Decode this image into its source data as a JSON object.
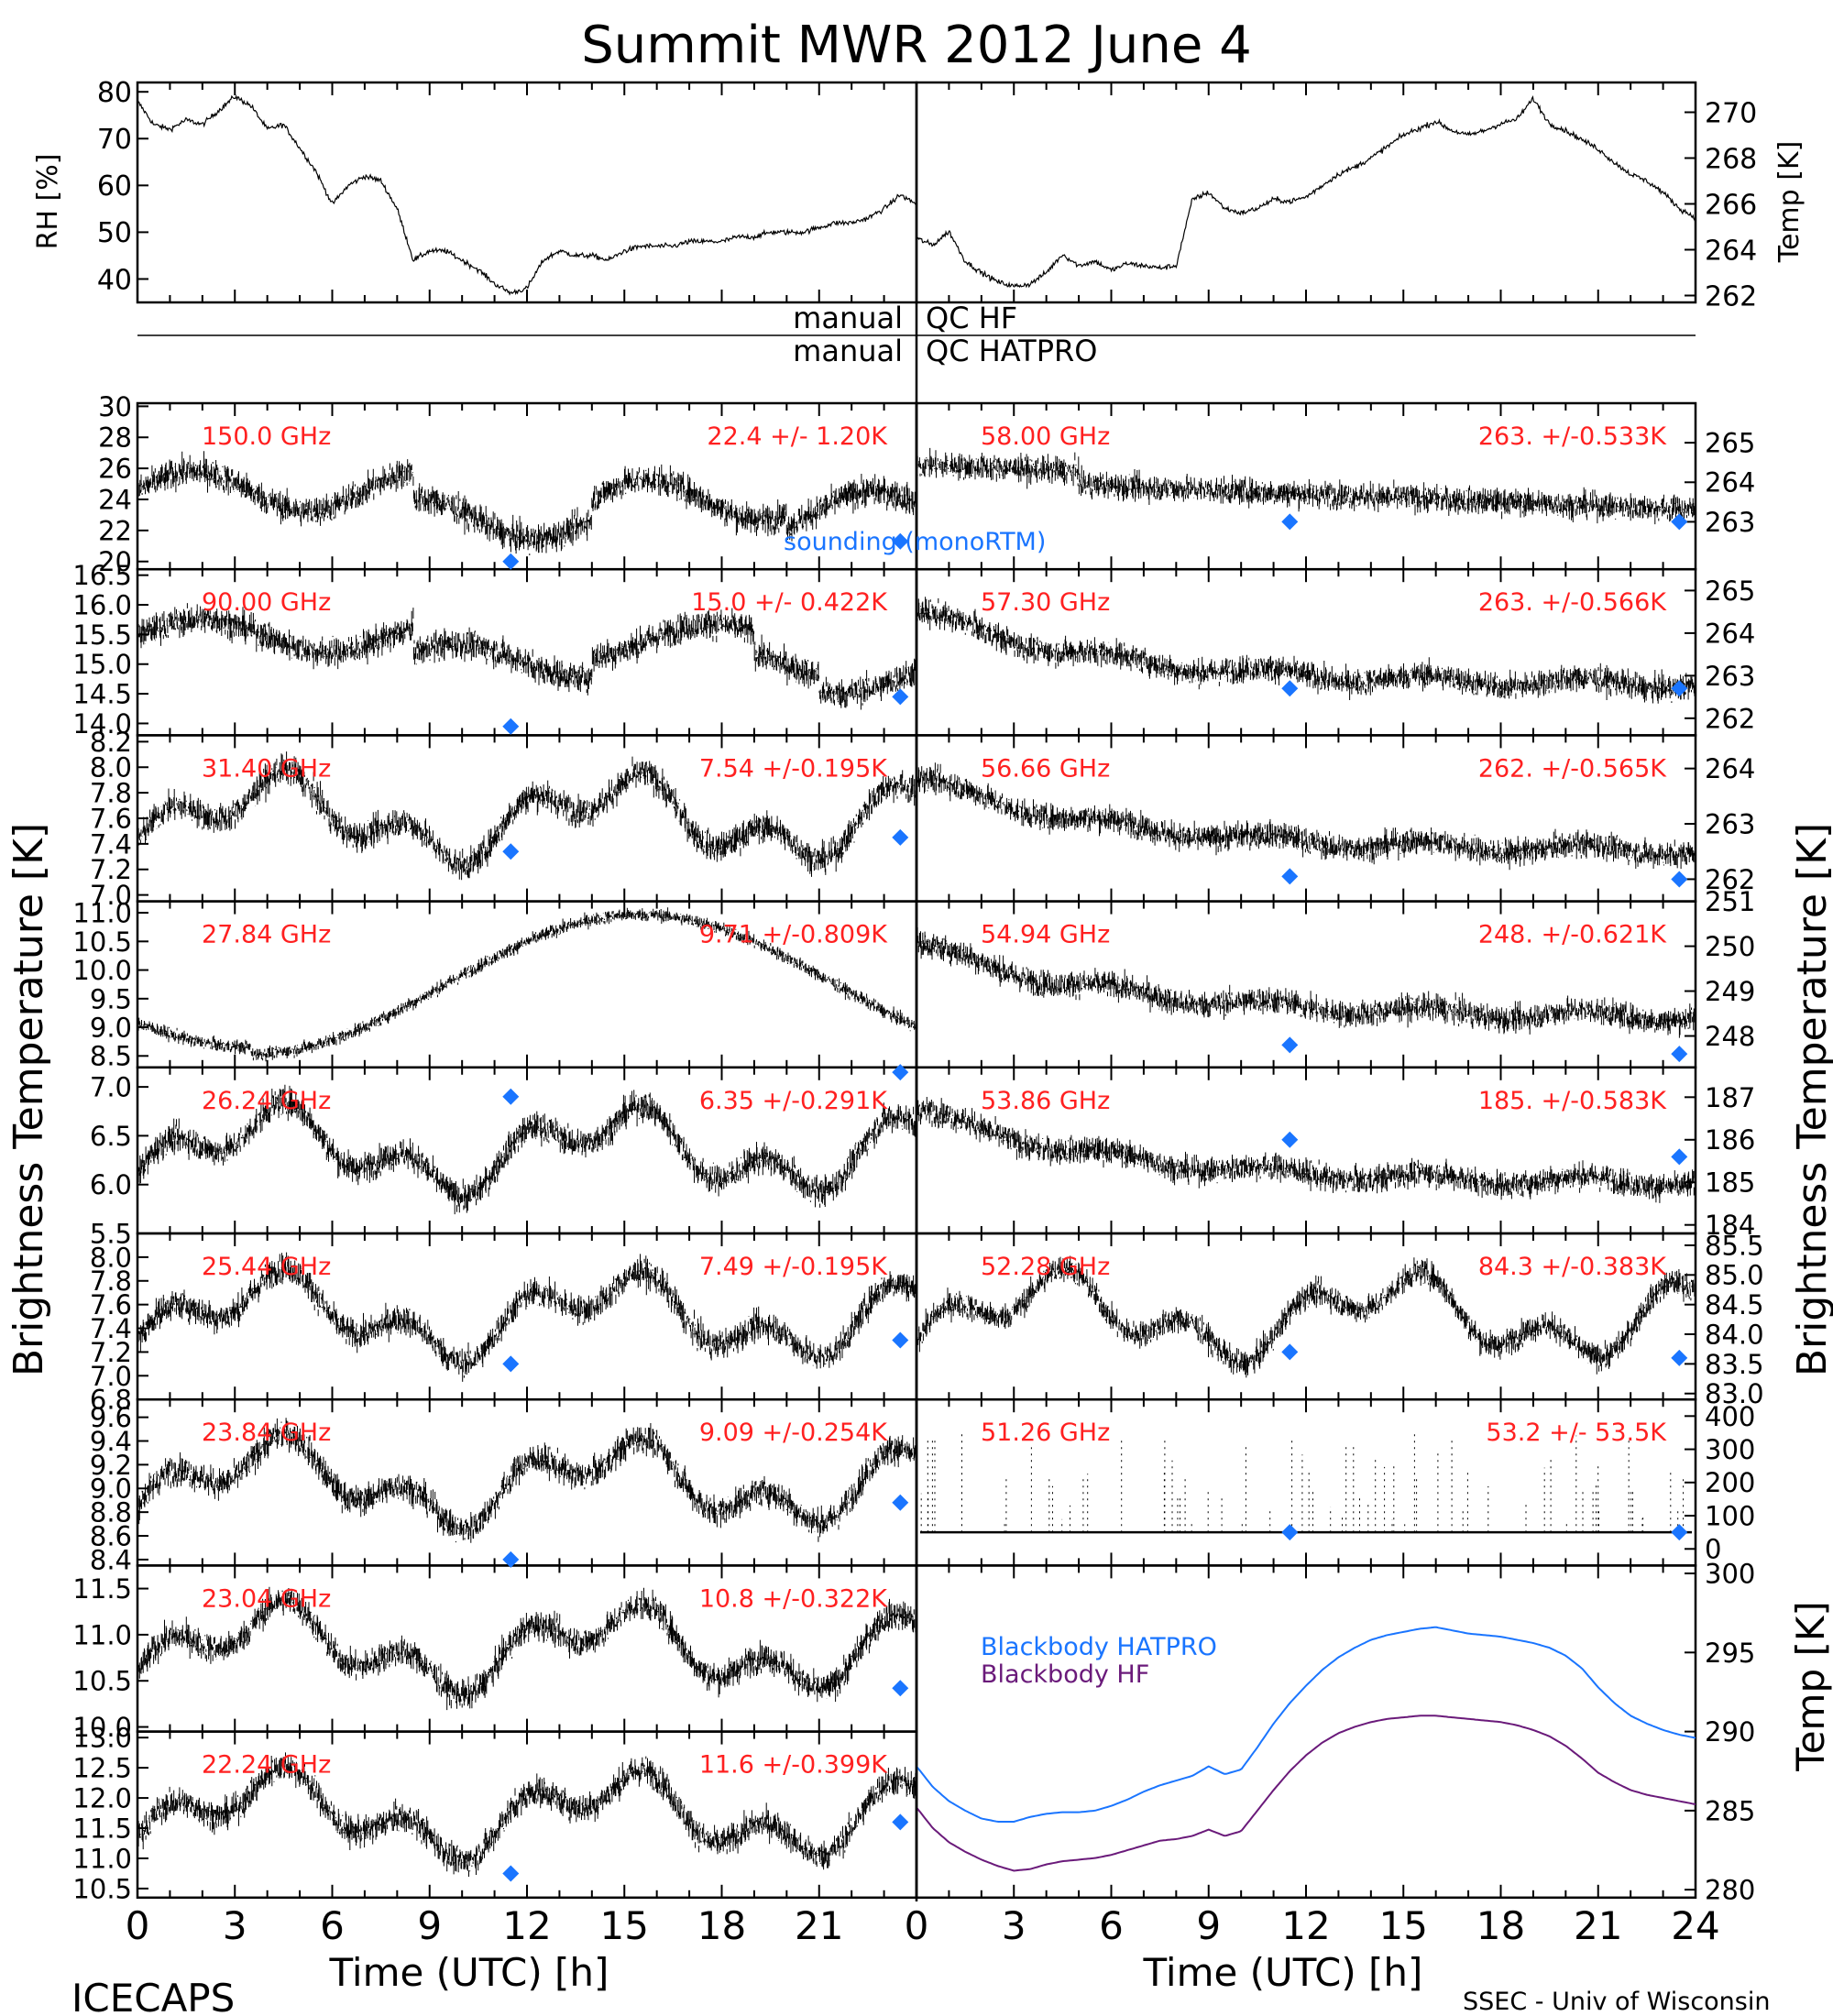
{
  "title": "Summit MWR 2012 June  4",
  "footer": {
    "left": "ICECAPS",
    "right": "SSEC - Univ of Wisconsin",
    "xlabel": "Time (UTC) [h]"
  },
  "y_labels": {
    "rh": "RH [%]",
    "temp": "Temp [K]",
    "bt_left": "Brightness Temperature [K]",
    "bt_right": "Brightness Temperature [K]",
    "bb_temp": "Temp [K]"
  },
  "qc": {
    "label_left": "manual",
    "label_hf": "QC HF",
    "label_hatpro": "QC HATPRO"
  },
  "legend": {
    "sounding": "sounding (monoRTM)",
    "bb_hatpro": "Blackbody HATPRO",
    "bb_hf": "Blackbody HF"
  },
  "colors": {
    "data": "#000000",
    "annotation": "#ff2020",
    "sounding": "#1a75ff",
    "bb_hatpro": "#1a75ff",
    "bb_hf": "#6a1a7a",
    "qc_line": "#000000"
  },
  "x_ticks": [
    "0",
    "3",
    "6",
    "9",
    "12",
    "15",
    "18",
    "21",
    "24"
  ],
  "chart_data": [
    {
      "type": "line",
      "name": "met",
      "x_range": [
        0,
        24
      ],
      "rh": {
        "ylabel": "RH [%]",
        "ylim": [
          35,
          82
        ],
        "ticks": [
          "40",
          "50",
          "60",
          "70",
          "80"
        ],
        "x": [
          0,
          0.5,
          1,
          1.5,
          2,
          2.5,
          3,
          3.5,
          4,
          4.5,
          5,
          5.5,
          6,
          6.5,
          7,
          7.5,
          8,
          8.5,
          9,
          9.5,
          10,
          10.5,
          11,
          11.5,
          12,
          12.5,
          13,
          13.5,
          14,
          14.5,
          15,
          15.5,
          16,
          16.5,
          17,
          17.5,
          18,
          18.5,
          19,
          19.5,
          20,
          20.5,
          21,
          21.5,
          22,
          22.5,
          23,
          23.5,
          24
        ],
        "values": [
          78,
          73,
          72,
          74,
          73,
          76,
          79,
          77,
          72,
          73,
          68,
          63,
          56,
          60,
          62,
          61,
          55,
          44,
          46,
          46,
          44,
          42,
          39,
          37,
          38,
          44,
          46,
          45,
          45,
          44,
          46,
          47,
          47,
          47,
          48,
          48,
          48,
          49,
          49,
          50,
          50,
          50,
          51,
          52,
          52,
          53,
          55,
          58,
          56
        ]
      },
      "temp": {
        "ylabel": "Temp [K]",
        "ylim": [
          261.7,
          271.3
        ],
        "ticks": [
          "262",
          "264",
          "266",
          "268",
          "270"
        ],
        "x": [
          0,
          0.5,
          1,
          1.5,
          2,
          2.5,
          3,
          3.5,
          4,
          4.5,
          5,
          5.5,
          6,
          6.5,
          7,
          7.5,
          8,
          8.5,
          9,
          9.5,
          10,
          10.5,
          11,
          11.5,
          12,
          12.5,
          13,
          13.5,
          14,
          14.5,
          15,
          15.5,
          16,
          16.5,
          17,
          17.5,
          18,
          18.5,
          19,
          19.5,
          20,
          20.5,
          21,
          21.5,
          22,
          22.5,
          23,
          23.5,
          24
        ],
        "values": [
          264.5,
          264.2,
          264.8,
          263.5,
          263,
          262.6,
          262.4,
          262.5,
          263,
          263.8,
          263.3,
          263.5,
          263.1,
          263.4,
          263.3,
          263.2,
          263.3,
          266.2,
          266.5,
          265.8,
          265.6,
          265.8,
          266.2,
          266.1,
          266.3,
          266.8,
          267.3,
          267.6,
          268,
          268.5,
          269,
          269.3,
          269.6,
          269.2,
          269,
          269.2,
          269.5,
          269.7,
          270.6,
          269.5,
          269.2,
          268.8,
          268.4,
          267.8,
          267.3,
          267,
          266.5,
          265.8,
          265.4
        ]
      }
    },
    {
      "type": "bar",
      "name": "qc_flags",
      "rows": [
        "QC HF",
        "QC HATPRO"
      ],
      "flagged": []
    },
    {
      "type": "scatter",
      "name": "hf_channels",
      "x_range": [
        0,
        24
      ],
      "panels": [
        {
          "freq": "150.0 GHz",
          "stats": "22.4 +/-  1.20K",
          "ylim": [
            19.5,
            30.2
          ],
          "ticks": [
            "20",
            "22",
            "24",
            "26",
            "28",
            "30"
          ],
          "pattern": "hf150",
          "sounding": [
            {
              "x": 11.5,
              "y": 20.0
            },
            {
              "x": 23.5,
              "y": 21.3
            }
          ]
        },
        {
          "freq": "90.00 GHz",
          "stats": "15.0 +/- 0.422K",
          "ylim": [
            13.8,
            16.6
          ],
          "ticks": [
            "14.0",
            "14.5",
            "15.0",
            "15.5",
            "16.0",
            "16.5"
          ],
          "pattern": "hf90",
          "sounding": [
            {
              "x": 11.5,
              "y": 13.95
            },
            {
              "x": 23.5,
              "y": 14.45
            }
          ]
        },
        {
          "freq": "31.40 GHz",
          "stats": "7.54 +/-0.195K",
          "ylim": [
            6.95,
            8.25
          ],
          "ticks": [
            "7.0",
            "7.2",
            "7.4",
            "7.6",
            "7.8",
            "8.0",
            "8.2"
          ],
          "pattern": "wv",
          "sounding": [
            {
              "x": 11.5,
              "y": 7.34
            },
            {
              "x": 23.5,
              "y": 7.45
            }
          ]
        },
        {
          "freq": "27.84 GHz",
          "stats": "9.71 +/-0.809K",
          "ylim": [
            8.3,
            11.2
          ],
          "ticks": [
            "8.5",
            "9.0",
            "9.5",
            "10.0",
            "10.5",
            "11.0"
          ],
          "pattern": "sine",
          "sounding": []
        },
        {
          "freq": "26.24 GHz",
          "stats": "6.35 +/-0.291K",
          "ylim": [
            5.5,
            7.2
          ],
          "ticks": [
            "5.5",
            "6.0",
            "6.5",
            "7.0"
          ],
          "pattern": "wv",
          "sounding": [
            {
              "x": 11.5,
              "y": 6.9
            },
            {
              "x": 23.5,
              "y": 7.15
            }
          ]
        },
        {
          "freq": "25.44 GHz",
          "stats": "7.49 +/-0.195K",
          "ylim": [
            6.8,
            8.2
          ],
          "ticks": [
            "6.8",
            "7.0",
            "7.2",
            "7.4",
            "7.6",
            "7.8",
            "8.0"
          ],
          "pattern": "wv",
          "sounding": [
            {
              "x": 11.5,
              "y": 7.1
            },
            {
              "x": 23.5,
              "y": 7.3
            }
          ]
        },
        {
          "freq": "23.84 GHz",
          "stats": "9.09 +/-0.254K",
          "ylim": [
            8.35,
            9.75
          ],
          "ticks": [
            "8.4",
            "8.6",
            "8.8",
            "9.0",
            "9.2",
            "9.4",
            "9.6"
          ],
          "pattern": "wv",
          "sounding": [
            {
              "x": 11.5,
              "y": 8.4
            },
            {
              "x": 23.5,
              "y": 8.88
            }
          ]
        },
        {
          "freq": "23.04 GHz",
          "stats": "10.8 +/-0.322K",
          "ylim": [
            9.95,
            11.75
          ],
          "ticks": [
            "10.0",
            "10.5",
            "11.0",
            "11.5"
          ],
          "pattern": "wv",
          "sounding": [
            {
              "x": 23.5,
              "y": 10.42
            }
          ]
        },
        {
          "freq": "22.24 GHz",
          "stats": "11.6 +/-0.399K",
          "ylim": [
            10.35,
            13.1
          ],
          "ticks": [
            "10.5",
            "11.0",
            "11.5",
            "12.0",
            "12.5",
            "13.0"
          ],
          "pattern": "wv",
          "sounding": [
            {
              "x": 11.5,
              "y": 10.75
            },
            {
              "x": 23.5,
              "y": 11.6
            }
          ]
        }
      ]
    },
    {
      "type": "scatter",
      "name": "hatpro_channels",
      "x_range": [
        0,
        24
      ],
      "panels": [
        {
          "freq": "58.00 GHz",
          "stats": "263. +/-0.533K",
          "ylim": [
            261.8,
            266.0
          ],
          "ticks": [
            "263",
            "264",
            "265"
          ],
          "pattern": "o2_high",
          "sounding": [
            {
              "x": 11.5,
              "y": 263.0
            },
            {
              "x": 23.5,
              "y": 263.0
            }
          ]
        },
        {
          "freq": "57.30 GHz",
          "stats": "263. +/-0.566K",
          "ylim": [
            261.6,
            265.5
          ],
          "ticks": [
            "262",
            "263",
            "264",
            "265"
          ],
          "pattern": "o2_decl",
          "sounding": [
            {
              "x": 11.5,
              "y": 262.7
            },
            {
              "x": 23.5,
              "y": 262.7
            }
          ]
        },
        {
          "freq": "56.66 GHz",
          "stats": "262. +/-0.565K",
          "ylim": [
            261.6,
            264.6
          ],
          "ticks": [
            "262",
            "263",
            "264"
          ],
          "pattern": "o2_decl",
          "sounding": [
            {
              "x": 11.5,
              "y": 262.05
            },
            {
              "x": 23.5,
              "y": 262.0
            }
          ]
        },
        {
          "freq": "54.94 GHz",
          "stats": "248. +/-0.621K",
          "ylim": [
            247.3,
            251.0
          ],
          "ticks": [
            "248",
            "249",
            "250",
            "251"
          ],
          "pattern": "o2_decl",
          "sounding": [
            {
              "x": 11.5,
              "y": 247.8
            },
            {
              "x": 23.5,
              "y": 247.6
            }
          ]
        },
        {
          "freq": "53.86 GHz",
          "stats": "185. +/-0.583K",
          "ylim": [
            183.8,
            187.7
          ],
          "ticks": [
            "184",
            "185",
            "186",
            "187"
          ],
          "pattern": "o2_decl",
          "sounding": [
            {
              "x": 11.5,
              "y": 186.0
            },
            {
              "x": 23.5,
              "y": 185.6
            }
          ]
        },
        {
          "freq": "52.28 GHz",
          "stats": "84.3 +/-0.383K",
          "ylim": [
            82.9,
            85.7
          ],
          "ticks": [
            "83.0",
            "83.5",
            "84.0",
            "84.5",
            "85.0",
            "85.5"
          ],
          "pattern": "wv",
          "sounding": [
            {
              "x": 11.5,
              "y": 83.7
            },
            {
              "x": 23.5,
              "y": 83.6
            }
          ]
        },
        {
          "freq": "51.26 GHz",
          "stats": "53.2 +/- 53.5K",
          "ylim": [
            -50,
            450
          ],
          "ticks": [
            "0",
            "100",
            "200",
            "300",
            "400"
          ],
          "pattern": "spiky",
          "sounding": [
            {
              "x": 11.5,
              "y": 50
            },
            {
              "x": 23.5,
              "y": 50
            }
          ]
        }
      ]
    },
    {
      "type": "line",
      "name": "blackbody",
      "x_range": [
        0,
        24
      ],
      "ylabel": "Temp [K]",
      "ylim": [
        279.5,
        300.5
      ],
      "ticks": [
        "280",
        "285",
        "290",
        "295",
        "300"
      ],
      "series": [
        {
          "name": "Blackbody HATPRO",
          "x": [
            0,
            0.5,
            1,
            1.5,
            2,
            2.5,
            3,
            3.5,
            4,
            4.5,
            5,
            5.5,
            6,
            6.5,
            7,
            7.5,
            8,
            8.5,
            9,
            9.5,
            10,
            10.5,
            11,
            11.5,
            12,
            12.5,
            13,
            13.5,
            14,
            14.5,
            15,
            15.5,
            16,
            16.5,
            17,
            17.5,
            18,
            18.5,
            19,
            19.5,
            20,
            20.5,
            21,
            21.5,
            22,
            22.5,
            23,
            23.5,
            24
          ],
          "values": [
            287.8,
            286.5,
            285.6,
            285.0,
            284.5,
            284.3,
            284.3,
            284.6,
            284.8,
            284.9,
            284.9,
            285.0,
            285.3,
            285.7,
            286.2,
            286.6,
            286.9,
            287.2,
            287.8,
            287.3,
            287.6,
            289.0,
            290.5,
            291.8,
            292.9,
            293.9,
            294.7,
            295.3,
            295.8,
            296.1,
            296.3,
            296.5,
            296.6,
            296.4,
            296.2,
            296.1,
            296.0,
            295.8,
            295.6,
            295.3,
            294.8,
            294.0,
            292.8,
            291.8,
            291.0,
            290.5,
            290.1,
            289.8,
            289.6
          ]
        },
        {
          "name": "Blackbody HF",
          "x": [
            0,
            0.5,
            1,
            1.5,
            2,
            2.5,
            3,
            3.5,
            4,
            4.5,
            5,
            5.5,
            6,
            6.5,
            7,
            7.5,
            8,
            8.5,
            9,
            9.5,
            10,
            10.5,
            11,
            11.5,
            12,
            12.5,
            13,
            13.5,
            14,
            14.5,
            15,
            15.5,
            16,
            16.5,
            17,
            17.5,
            18,
            18.5,
            19,
            19.5,
            20,
            20.5,
            21,
            21.5,
            22,
            22.5,
            23,
            23.5,
            24
          ],
          "values": [
            285.2,
            283.9,
            283.0,
            282.4,
            281.9,
            281.5,
            281.2,
            281.3,
            281.6,
            281.8,
            281.9,
            282.0,
            282.2,
            282.5,
            282.8,
            283.1,
            283.2,
            283.4,
            283.8,
            283.4,
            283.7,
            285.0,
            286.3,
            287.5,
            288.5,
            289.3,
            289.9,
            290.3,
            290.6,
            290.8,
            290.9,
            291.0,
            291.0,
            290.9,
            290.8,
            290.7,
            290.6,
            290.4,
            290.1,
            289.7,
            289.1,
            288.3,
            287.4,
            286.8,
            286.3,
            286.0,
            285.8,
            285.6,
            285.4
          ]
        }
      ]
    }
  ]
}
